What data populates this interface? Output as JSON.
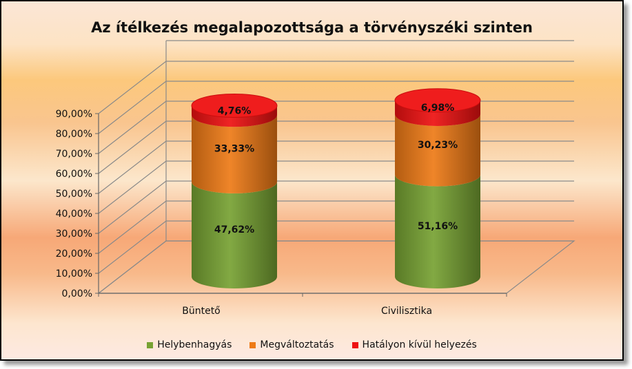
{
  "chart_data": {
    "type": "bar",
    "title": "Az ítélkezés megalapozottsága a törvényszéki szinten",
    "categories": [
      "Büntető",
      "Civilisztika"
    ],
    "series": [
      {
        "name": "Helybenhagyás",
        "color": "#77a233",
        "values": [
          47.62,
          51.16
        ],
        "labels": [
          "47,62%",
          "51,16%"
        ]
      },
      {
        "name": "Megváltoztatás",
        "color": "#ee7a16",
        "values": [
          33.33,
          30.23
        ],
        "labels": [
          "33,33%",
          "30,23%"
        ]
      },
      {
        "name": "Hatályon kívül helyezés",
        "color": "#ee1111",
        "values": [
          4.76,
          6.98
        ],
        "labels": [
          "4,76%",
          "6,98%"
        ]
      }
    ],
    "yticks": [
      "0,00%",
      "10,00%",
      "20,00%",
      "30,00%",
      "40,00%",
      "50,00%",
      "60,00%",
      "70,00%",
      "80,00%",
      "90,00%"
    ],
    "ylim": [
      0,
      90
    ],
    "stacked": true,
    "shape": "3d-cylinder",
    "grid": true,
    "legend_position": "bottom"
  }
}
